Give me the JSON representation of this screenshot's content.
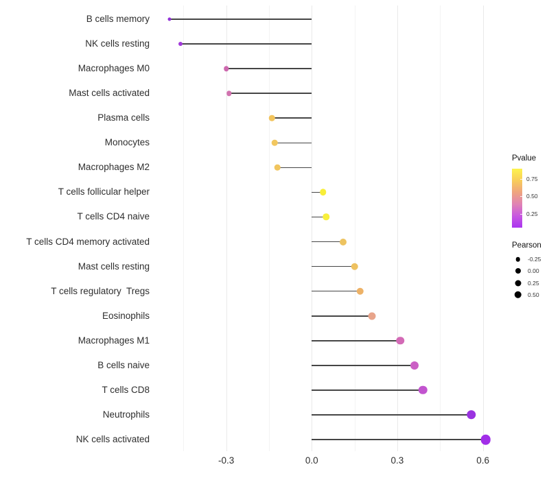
{
  "figure": {
    "background": "#ffffff",
    "stem_color": "#454545",
    "major_grid_color": "#e9e9e9",
    "minor_grid_color": "#f3f3f3"
  },
  "chart_data": {
    "type": "scatter",
    "variant": "horizontal-lollipop",
    "title": "",
    "xlabel": "",
    "ylabel": "",
    "grid": "vertical-only",
    "xlim": [
      -0.55,
      0.66
    ],
    "x_ticks": [
      {
        "value": -0.3,
        "label": "-0.3"
      },
      {
        "value": 0.0,
        "label": "0.0"
      },
      {
        "value": 0.3,
        "label": "0.3"
      },
      {
        "value": 0.6,
        "label": "0.6"
      }
    ],
    "x_minor_gridlines": [
      -0.45,
      -0.15,
      0.15,
      0.45
    ],
    "categories": [
      "B cells memory",
      "NK cells resting",
      "Macrophages M0",
      "Mast cells activated",
      "Plasma cells",
      "Monocytes",
      "Macrophages M2",
      "T cells follicular helper",
      "T cells CD4 naive",
      "T cells CD4 memory activated",
      "Mast cells resting",
      "T cells regulatory  Tregs",
      "Eosinophils",
      "Macrophages M1",
      "B cells naive",
      "T cells CD8",
      "Neutrophils",
      "NK cells activated"
    ],
    "points": [
      {
        "label": "B cells memory",
        "pearson": -0.5,
        "color": "#9232d8",
        "size": 5
      },
      {
        "label": "NK cells resting",
        "pearson": -0.46,
        "color": "#a139da",
        "size": 6
      },
      {
        "label": "Macrophages M0",
        "pearson": -0.3,
        "color": "#cd68ae",
        "size": 7.5
      },
      {
        "label": "Mast cells activated",
        "pearson": -0.29,
        "color": "#d173af",
        "size": 7.5
      },
      {
        "label": "Plasma cells",
        "pearson": -0.14,
        "color": "#f2c45d",
        "size": 8.5
      },
      {
        "label": "Monocytes",
        "pearson": -0.13,
        "color": "#f2c75f",
        "size": 8.5
      },
      {
        "label": "Macrophages M2",
        "pearson": -0.12,
        "color": "#f1c55e",
        "size": 8.5
      },
      {
        "label": "T cells follicular helper",
        "pearson": 0.04,
        "color": "#f8ee39",
        "size": 9.5
      },
      {
        "label": "T cells CD4 naive",
        "pearson": 0.05,
        "color": "#f8ef3c",
        "size": 9.5
      },
      {
        "label": "T cells CD4 memory activated",
        "pearson": 0.11,
        "color": "#edc360",
        "size": 10
      },
      {
        "label": "Mast cells resting",
        "pearson": 0.15,
        "color": "#eec160",
        "size": 10.5
      },
      {
        "label": "T cells regulatory  Tregs",
        "pearson": 0.17,
        "color": "#edb267",
        "size": 10.5
      },
      {
        "label": "Eosinophils",
        "pearson": 0.21,
        "color": "#e8a48b",
        "size": 11
      },
      {
        "label": "Macrophages M1",
        "pearson": 0.31,
        "color": "#d36ab6",
        "size": 11.5
      },
      {
        "label": "B cells naive",
        "pearson": 0.36,
        "color": "#cb5fc5",
        "size": 12
      },
      {
        "label": "T cells CD8",
        "pearson": 0.39,
        "color": "#c254cf",
        "size": 12.5
      },
      {
        "label": "Neutrophils",
        "pearson": 0.56,
        "color": "#9a33e0",
        "size": 13.5
      },
      {
        "label": "NK cells activated",
        "pearson": 0.61,
        "color": "#a12ee8",
        "size": 14.5
      }
    ],
    "legend_pvalue": {
      "title": "Pvalue",
      "range": [
        0.05,
        0.9
      ],
      "ticks": [
        {
          "value": 0.75,
          "label": "0.75"
        },
        {
          "value": 0.5,
          "label": "0.50"
        },
        {
          "value": 0.25,
          "label": "0.25"
        }
      ],
      "gradient_top_to_bottom": [
        "#fdf34d",
        "#f8cd5a",
        "#efa47f",
        "#e083b4",
        "#c858e0",
        "#a935f0"
      ]
    },
    "legend_pearson": {
      "title": "Pearson",
      "dot_color": "#000000",
      "items": [
        {
          "label": "-0.25",
          "size": 6.5
        },
        {
          "label": "0.00",
          "size": 8
        },
        {
          "label": "0.25",
          "size": 9
        },
        {
          "label": "0.50",
          "size": 10.5
        }
      ]
    }
  }
}
